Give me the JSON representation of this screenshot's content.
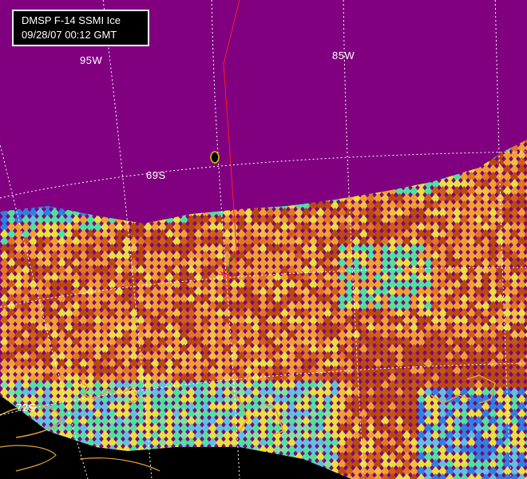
{
  "title": {
    "line1": "DMSP F-14 SSMI Ice",
    "line2": "09/28/07 00:12 GMT"
  },
  "grid_labels": {
    "lon_95w": "95W",
    "lon_85w": "85W",
    "lat_69s": "69S",
    "lat_72s": "72S"
  },
  "colors": {
    "open_water": "#800080",
    "land": "#000000",
    "coastline": "#e0a040",
    "graticule": "#ffffff",
    "ship_track": "#ff2020",
    "ice_high": "#b84a10",
    "ice_mid": "#f0a030",
    "ice_low": "#e8e040",
    "ice_very_low": "#50e0a0",
    "ice_edge": "#3080e0"
  }
}
